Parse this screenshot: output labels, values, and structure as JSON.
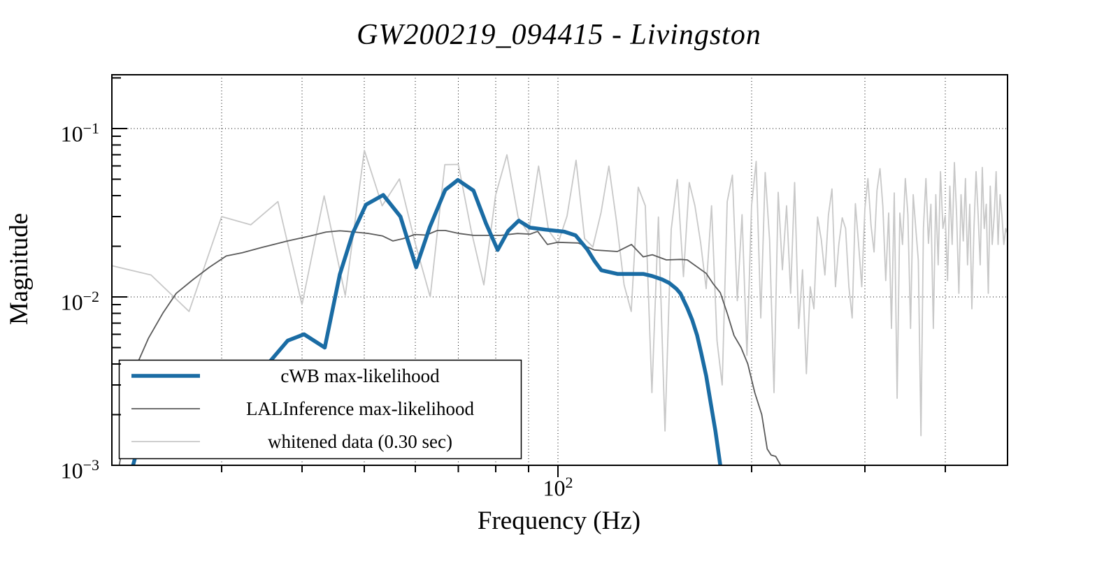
{
  "title": "GW200219_094415 - Livingston",
  "axes": {
    "x": {
      "label": "Frequency (Hz)",
      "scale": "log",
      "ticks": [
        {
          "base": "10",
          "exp": "2",
          "value": 100
        }
      ],
      "minor_ticks": [
        30,
        40,
        50,
        60,
        70,
        80,
        90,
        200,
        300,
        400
      ],
      "gridlines": [
        30,
        40,
        50,
        60,
        70,
        80,
        90,
        100,
        200,
        300,
        400
      ]
    },
    "y": {
      "label": "Magnitude",
      "scale": "log",
      "ticks": [
        {
          "base": "10",
          "exp": "−1",
          "value": 0.1
        },
        {
          "base": "10",
          "exp": "−2",
          "value": 0.01
        },
        {
          "base": "10",
          "exp": "−3",
          "value": 0.001
        }
      ],
      "minor_ticks": [
        0.2,
        0.09,
        0.08,
        0.07,
        0.06,
        0.05,
        0.04,
        0.03,
        0.02,
        0.009,
        0.008,
        0.007,
        0.006,
        0.005,
        0.004,
        0.003,
        0.002
      ],
      "gridlines": [
        0.1,
        0.01
      ]
    }
  },
  "legend": {
    "position": "lower left",
    "border_color": "#000000",
    "background": "#ffffff"
  },
  "chart_data": {
    "type": "line",
    "title": "GW200219_094415 - Livingston",
    "xlabel": "Frequency (Hz)",
    "ylabel": "Magnitude",
    "x_scale": "log",
    "y_scale": "log",
    "xlim": [
      20.3,
      500
    ],
    "ylim": [
      0.001,
      0.209
    ],
    "grid": "dotted",
    "legend_position": "lower left",
    "series": [
      {
        "name": "cWB max-likelihood",
        "color": "#1a6ca4",
        "width": 5.5,
        "points": [
          [
            21.3,
            0.0007
          ],
          [
            22.0,
            0.0011
          ],
          [
            23.5,
            0.0016
          ],
          [
            25,
            0.0021
          ],
          [
            27,
            0.0027
          ],
          [
            29,
            0.0031
          ],
          [
            31,
            0.0034
          ],
          [
            33,
            0.0037
          ],
          [
            35.4,
            0.004
          ],
          [
            38,
            0.0055
          ],
          [
            40.3,
            0.006
          ],
          [
            43.4,
            0.005
          ],
          [
            45.8,
            0.0136
          ],
          [
            48,
            0.024
          ],
          [
            50.3,
            0.0353
          ],
          [
            53.5,
            0.0403
          ],
          [
            56.9,
            0.03
          ],
          [
            60.2,
            0.015
          ],
          [
            63.2,
            0.026
          ],
          [
            66.8,
            0.0432
          ],
          [
            69.9,
            0.0495
          ],
          [
            73.9,
            0.0428
          ],
          [
            77.3,
            0.0273
          ],
          [
            80.6,
            0.019
          ],
          [
            83.7,
            0.0247
          ],
          [
            86.9,
            0.0284
          ],
          [
            90.5,
            0.0258
          ],
          [
            95.6,
            0.0251
          ],
          [
            102.3,
            0.0244
          ],
          [
            106.5,
            0.0232
          ],
          [
            111.1,
            0.0191
          ],
          [
            113.9,
            0.0164
          ],
          [
            116.8,
            0.0144
          ],
          [
            123.7,
            0.0137
          ],
          [
            130.1,
            0.0137
          ],
          [
            135.7,
            0.0137
          ],
          [
            140.2,
            0.0133
          ],
          [
            145.2,
            0.0127
          ],
          [
            148.9,
            0.0121
          ],
          [
            152.7,
            0.0112
          ],
          [
            155.0,
            0.0105
          ],
          [
            158.9,
            0.0086
          ],
          [
            161.7,
            0.0073
          ],
          [
            164.6,
            0.0059
          ],
          [
            167.1,
            0.0046
          ],
          [
            170.0,
            0.0034
          ],
          [
            172.9,
            0.0023
          ],
          [
            175.7,
            0.0016
          ],
          [
            178.8,
            0.001
          ]
        ]
      },
      {
        "name": "LALInference max-likelihood",
        "color": "#5a5a5a",
        "width": 1.8,
        "points": [
          [
            20.8,
            0.001
          ],
          [
            21.4,
            0.002
          ],
          [
            22.3,
            0.0042
          ],
          [
            23.1,
            0.0057
          ],
          [
            24.3,
            0.008
          ],
          [
            25.5,
            0.0105
          ],
          [
            27.1,
            0.0127
          ],
          [
            28.7,
            0.015
          ],
          [
            30.5,
            0.0175
          ],
          [
            32.3,
            0.0183
          ],
          [
            34.7,
            0.0197
          ],
          [
            38,
            0.0215
          ],
          [
            41.2,
            0.023
          ],
          [
            43.6,
            0.0243
          ],
          [
            45.8,
            0.0247
          ],
          [
            47.1,
            0.0245
          ],
          [
            50.8,
            0.0238
          ],
          [
            53.4,
            0.023
          ],
          [
            55.4,
            0.0215
          ],
          [
            57.5,
            0.0222
          ],
          [
            59.9,
            0.0235
          ],
          [
            62.4,
            0.0233
          ],
          [
            64.9,
            0.0248
          ],
          [
            66.8,
            0.0248
          ],
          [
            70.2,
            0.0238
          ],
          [
            73.9,
            0.0232
          ],
          [
            77.6,
            0.0232
          ],
          [
            81.5,
            0.0232
          ],
          [
            86.5,
            0.0238
          ],
          [
            90.5,
            0.0236
          ],
          [
            93.0,
            0.0245
          ],
          [
            96.3,
            0.0205
          ],
          [
            100,
            0.0211
          ],
          [
            107.5,
            0.0209
          ],
          [
            113.9,
            0.019
          ],
          [
            123.7,
            0.0186
          ],
          [
            130.1,
            0.0205
          ],
          [
            135.7,
            0.0173
          ],
          [
            140.2,
            0.0178
          ],
          [
            147.4,
            0.0166
          ],
          [
            155,
            0.0167
          ],
          [
            158.9,
            0.0166
          ],
          [
            170,
            0.0138
          ],
          [
            174.2,
            0.012
          ],
          [
            178.8,
            0.0106
          ],
          [
            183.3,
            0.008
          ],
          [
            187.8,
            0.0059
          ],
          [
            192.6,
            0.005
          ],
          [
            197.3,
            0.004
          ],
          [
            202.3,
            0.0027
          ],
          [
            207.4,
            0.002
          ],
          [
            211.5,
            0.00125
          ],
          [
            214.5,
            0.00115
          ],
          [
            218,
            0.00113
          ],
          [
            222,
            0.001
          ]
        ]
      },
      {
        "name": "whitened data (0.30 sec)",
        "color": "#c8c8c8",
        "width": 1.8,
        "points": [
          [
            20,
            0.0155
          ],
          [
            23.3,
            0.0135
          ],
          [
            26.7,
            0.0082
          ],
          [
            30,
            0.03
          ],
          [
            33.3,
            0.0268
          ],
          [
            36.7,
            0.0368
          ],
          [
            40,
            0.009
          ],
          [
            43.3,
            0.0398
          ],
          [
            46.7,
            0.0102
          ],
          [
            50,
            0.0742
          ],
          [
            53.3,
            0.0348
          ],
          [
            56.7,
            0.0502
          ],
          [
            60,
            0.0208
          ],
          [
            63.3,
            0.01
          ],
          [
            66.7,
            0.061
          ],
          [
            70,
            0.0612
          ],
          [
            73.3,
            0.0248
          ],
          [
            76.7,
            0.0118
          ],
          [
            80,
            0.0402
          ],
          [
            83.3,
            0.0698
          ],
          [
            86.7,
            0.0298
          ],
          [
            90,
            0.0238
          ],
          [
            93.3,
            0.0598
          ],
          [
            96.7,
            0.0248
          ],
          [
            100,
            0.0208
          ],
          [
            103.3,
            0.0302
          ],
          [
            106.7,
            0.0648
          ],
          [
            110,
            0.0222
          ],
          [
            113.3,
            0.0198
          ],
          [
            116.7,
            0.0318
          ],
          [
            120,
            0.0598
          ],
          [
            123.3,
            0.0282
          ],
          [
            126.7,
            0.0118
          ],
          [
            130,
            0.0082
          ],
          [
            133.3,
            0.0448
          ],
          [
            136.7,
            0.0348
          ],
          [
            140,
            0.0027
          ],
          [
            143.3,
            0.0298
          ],
          [
            146.7,
            0.0016
          ],
          [
            150,
            0.0252
          ],
          [
            153.3,
            0.0498
          ],
          [
            156.7,
            0.0132
          ],
          [
            160,
            0.0478
          ],
          [
            163.3,
            0.0348
          ],
          [
            166.7,
            0.0208
          ],
          [
            170,
            0.0112
          ],
          [
            173.3,
            0.0348
          ],
          [
            176.7,
            0.0055
          ],
          [
            180,
            0.003
          ],
          [
            183.3,
            0.0368
          ],
          [
            186.7,
            0.0528
          ],
          [
            190,
            0.0095
          ],
          [
            193.3,
            0.0308
          ],
          [
            196.7,
            0.0045
          ],
          [
            200,
            0.0348
          ],
          [
            203.3,
            0.0638
          ],
          [
            206.7,
            0.0075
          ],
          [
            210,
            0.0548
          ],
          [
            213.3,
            0.0218
          ],
          [
            216.7,
            0.0027
          ],
          [
            220,
            0.0418
          ],
          [
            223.3,
            0.0145
          ],
          [
            226.7,
            0.0348
          ],
          [
            230,
            0.0105
          ],
          [
            233.3,
            0.0478
          ],
          [
            236.7,
            0.0065
          ],
          [
            240,
            0.0145
          ],
          [
            243.3,
            0.0035
          ],
          [
            246.7,
            0.0115
          ],
          [
            250,
            0.0085
          ],
          [
            253.3,
            0.0298
          ],
          [
            256.7,
            0.0218
          ],
          [
            260,
            0.0135
          ],
          [
            263.3,
            0.0305
          ],
          [
            266.7,
            0.0438
          ],
          [
            270,
            0.0115
          ],
          [
            273.3,
            0.0205
          ],
          [
            276.7,
            0.0295
          ],
          [
            280,
            0.0255
          ],
          [
            283.3,
            0.0115
          ],
          [
            286.7,
            0.0075
          ],
          [
            290,
            0.0358
          ],
          [
            293.3,
            0.0208
          ],
          [
            296.7,
            0.0115
          ],
          [
            300,
            0.0335
          ],
          [
            303.3,
            0.0505
          ],
          [
            306.7,
            0.0265
          ],
          [
            310,
            0.0185
          ],
          [
            313.3,
            0.0428
          ],
          [
            316.7,
            0.0578
          ],
          [
            320,
            0.0345
          ],
          [
            323.3,
            0.0125
          ],
          [
            326.7,
            0.0315
          ],
          [
            330,
            0.0065
          ],
          [
            333.3,
            0.0415
          ],
          [
            336.7,
            0.0025
          ],
          [
            340,
            0.0315
          ],
          [
            343.3,
            0.0205
          ],
          [
            346.7,
            0.0505
          ],
          [
            350,
            0.0308
          ],
          [
            353.3,
            0.0065
          ],
          [
            356.7,
            0.0405
          ],
          [
            360,
            0.0255
          ],
          [
            363.3,
            0.0165
          ],
          [
            366.7,
            0.0015
          ],
          [
            370,
            0.0255
          ],
          [
            373.3,
            0.0505
          ],
          [
            376.7,
            0.0208
          ],
          [
            380,
            0.0355
          ],
          [
            383.3,
            0.0065
          ],
          [
            386.7,
            0.0405
          ],
          [
            390,
            0.0155
          ],
          [
            393.3,
            0.0555
          ],
          [
            396.7,
            0.0255
          ],
          [
            400,
            0.0305
          ],
          [
            403.3,
            0.0125
          ],
          [
            406.7,
            0.0455
          ],
          [
            410,
            0.0205
          ],
          [
            413.3,
            0.0628
          ],
          [
            416.7,
            0.0305
          ],
          [
            420,
            0.0105
          ],
          [
            423.3,
            0.0405
          ],
          [
            426.7,
            0.0215
          ],
          [
            430,
            0.0505
          ],
          [
            433.3,
            0.0155
          ],
          [
            436.7,
            0.0355
          ],
          [
            440,
            0.0085
          ],
          [
            443.3,
            0.0255
          ],
          [
            446.7,
            0.0555
          ],
          [
            450,
            0.0305
          ],
          [
            453.3,
            0.0155
          ],
          [
            456.7,
            0.0588
          ],
          [
            460,
            0.0255
          ],
          [
            463.3,
            0.0355
          ],
          [
            466.7,
            0.0105
          ],
          [
            470,
            0.0455
          ],
          [
            473.3,
            0.0205
          ],
          [
            476.7,
            0.0305
          ],
          [
            480,
            0.0555
          ],
          [
            483.3,
            0.0205
          ],
          [
            486.7,
            0.0405
          ],
          [
            490,
            0.0305
          ],
          [
            493.3,
            0.0205
          ],
          [
            496.7,
            0.0255
          ],
          [
            500,
            0.0238
          ]
        ]
      }
    ]
  }
}
